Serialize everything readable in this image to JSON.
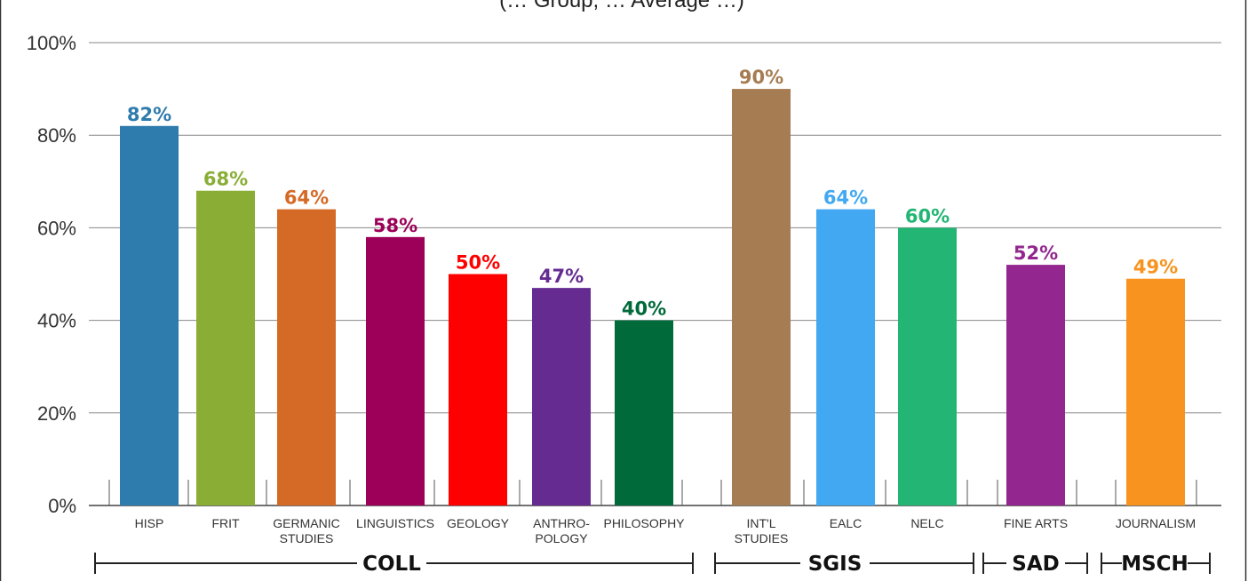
{
  "chart_data": {
    "type": "bar",
    "title_fragment": "(… Group, … Average …)",
    "y_ticks": [
      "0%",
      "20%",
      "40%",
      "60%",
      "80%",
      "100%"
    ],
    "ylim": [
      0,
      100
    ],
    "grid": true,
    "categories": [
      "HISP",
      "FRIT",
      "GERMANIC STUDIES",
      "LINGUISTICS",
      "GEOLOGY",
      "ANTHRO- POLOGY",
      "PHILOSOPHY",
      "INT'L STUDIES",
      "EALC",
      "NELC",
      "FINE ARTS",
      "JOURNALISM"
    ],
    "category_lines": [
      [
        "HISP"
      ],
      [
        "FRIT"
      ],
      [
        "GERMANIC",
        "STUDIES"
      ],
      [
        "LINGUISTICS"
      ],
      [
        "GEOLOGY"
      ],
      [
        "ANTHRO-",
        "POLOGY"
      ],
      [
        "PHILOSOPHY"
      ],
      [
        "INT'L",
        "STUDIES"
      ],
      [
        "EALC"
      ],
      [
        "NELC"
      ],
      [
        "FINE ARTS"
      ],
      [
        "JOURNALISM"
      ]
    ],
    "values": [
      82,
      68,
      64,
      58,
      50,
      47,
      40,
      90,
      64,
      60,
      52,
      49
    ],
    "value_labels": [
      "82%",
      "68%",
      "64%",
      "58%",
      "50%",
      "47%",
      "40%",
      "90%",
      "64%",
      "60%",
      "52%",
      "49%"
    ],
    "colors": [
      "#2e7bad",
      "#8aae35",
      "#d56a27",
      "#9d0058",
      "#ff0000",
      "#652b91",
      "#006a3b",
      "#a67c52",
      "#42a8f2",
      "#22b573",
      "#93278f",
      "#f7931e"
    ],
    "groups": [
      {
        "label": "COLL",
        "members": [
          0,
          1,
          2,
          3,
          4,
          5,
          6
        ]
      },
      {
        "label": "SGIS",
        "members": [
          7,
          8,
          9
        ]
      },
      {
        "label": "SAD",
        "members": [
          10
        ]
      },
      {
        "label": "MSCH",
        "members": [
          11
        ]
      }
    ]
  }
}
